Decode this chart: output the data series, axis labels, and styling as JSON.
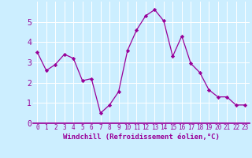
{
  "x": [
    0,
    1,
    2,
    3,
    4,
    5,
    6,
    7,
    8,
    9,
    10,
    11,
    12,
    13,
    14,
    15,
    16,
    17,
    18,
    19,
    20,
    21,
    22,
    23
  ],
  "y": [
    3.5,
    2.6,
    2.9,
    3.4,
    3.2,
    2.1,
    2.2,
    0.5,
    0.9,
    1.55,
    3.6,
    4.6,
    5.3,
    5.6,
    5.05,
    3.3,
    4.3,
    2.95,
    2.5,
    1.65,
    1.3,
    1.3,
    0.9,
    0.9
  ],
  "line_color": "#990099",
  "marker": "D",
  "marker_size": 2.2,
  "bg_color": "#cceeff",
  "grid_color": "#ffffff",
  "xlabel": "Windchill (Refroidissement éolien,°C)",
  "xlabel_color": "#990099",
  "tick_color": "#990099",
  "ylim": [
    0,
    6
  ],
  "xlim": [
    -0.5,
    23.5
  ],
  "yticks": [
    0,
    1,
    2,
    3,
    4,
    5
  ],
  "xticks": [
    0,
    1,
    2,
    3,
    4,
    5,
    6,
    7,
    8,
    9,
    10,
    11,
    12,
    13,
    14,
    15,
    16,
    17,
    18,
    19,
    20,
    21,
    22,
    23
  ]
}
